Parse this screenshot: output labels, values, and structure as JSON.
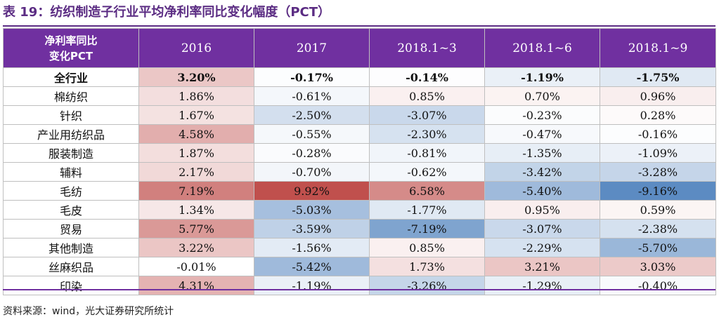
{
  "title": "表 19：纺织制造子行业平均净利率同比变化幅度（PCT）",
  "header": {
    "corner_line1": "净利率同比",
    "corner_line2": "变化PCT",
    "columns": [
      "2016",
      "2017",
      "2018.1~3",
      "2018.1~6",
      "2018.1~9"
    ]
  },
  "rows": [
    {
      "label": "全行业",
      "values": [
        "3.20%",
        "-0.17%",
        "-0.14%",
        "-1.19%",
        "-1.75%"
      ]
    },
    {
      "label": "棉纺织",
      "values": [
        "1.86%",
        "-0.61%",
        "0.85%",
        "0.70%",
        "0.96%"
      ]
    },
    {
      "label": "针织",
      "values": [
        "1.67%",
        "-2.50%",
        "-3.07%",
        "-0.23%",
        "0.28%"
      ]
    },
    {
      "label": "产业用纺织品",
      "values": [
        "4.58%",
        "-0.55%",
        "-2.30%",
        "-0.47%",
        "-0.16%"
      ]
    },
    {
      "label": "服装制造",
      "values": [
        "1.87%",
        "-0.28%",
        "-0.81%",
        "-1.35%",
        "-1.09%"
      ]
    },
    {
      "label": "辅料",
      "values": [
        "2.17%",
        "-0.70%",
        "-0.62%",
        "-3.42%",
        "-3.28%"
      ]
    },
    {
      "label": "毛纺",
      "values": [
        "7.19%",
        "9.92%",
        "6.58%",
        "-5.40%",
        "-9.16%"
      ]
    },
    {
      "label": "毛皮",
      "values": [
        "1.34%",
        "-5.03%",
        "-1.77%",
        "0.95%",
        "0.59%"
      ]
    },
    {
      "label": "贸易",
      "values": [
        "5.77%",
        "-3.59%",
        "-7.19%",
        "-3.07%",
        "-2.38%"
      ]
    },
    {
      "label": "其他制造",
      "values": [
        "3.22%",
        "-1.56%",
        "0.85%",
        "-2.29%",
        "-5.70%"
      ]
    },
    {
      "label": "丝麻织品",
      "values": [
        "-0.01%",
        "-5.42%",
        "1.73%",
        "3.21%",
        "3.03%"
      ]
    },
    {
      "label": "印染",
      "values": [
        "4.31%",
        "-1.19%",
        "-3.26%",
        "-1.29%",
        "-0.40%"
      ]
    }
  ],
  "source": "资料来源：wind，光大证券研究所统计",
  "colors": {
    "header_bg": "#7030a0",
    "title_color": "#5b2c83",
    "positive_max": "#c0504d",
    "negative_max": "#4f81bd"
  }
}
